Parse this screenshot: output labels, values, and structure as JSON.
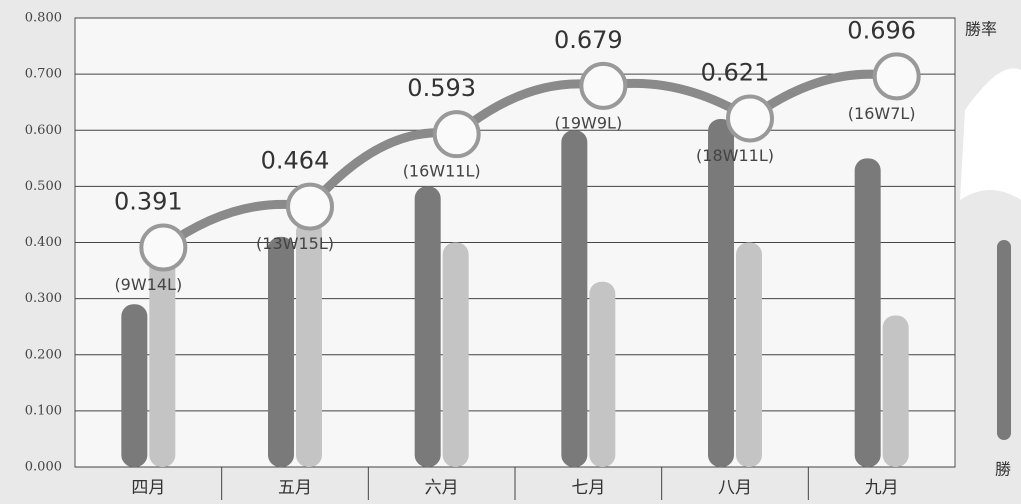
{
  "chart_data": {
    "type": "bar",
    "categories": [
      "四月",
      "五月",
      "六月",
      "七月",
      "八月",
      "九月"
    ],
    "series": [
      {
        "name": "勝",
        "color": "#7a7a7a",
        "values": [
          0.29,
          0.41,
          0.5,
          0.6,
          0.62,
          0.55
        ]
      },
      {
        "color": "#c4c4c4",
        "values": [
          0.4,
          0.44,
          0.4,
          0.33,
          0.4,
          0.27
        ]
      },
      {
        "name": "勝率",
        "type": "line",
        "color": "#8a8a8a",
        "values": [
          0.391,
          0.464,
          0.593,
          0.679,
          0.621,
          0.696
        ]
      }
    ],
    "records": [
      "(9W14L)",
      "(13W15L)",
      "(16W11L)",
      "(19W9L)",
      "(18W11L)",
      "(16W7L)"
    ],
    "ylim": [
      0,
      0.8
    ],
    "yticks": [
      {
        "value": 0,
        "label": "0.000"
      },
      {
        "value": 0.1,
        "label": "0.100"
      },
      {
        "value": 0.2,
        "label": "0.200"
      },
      {
        "value": 0.3,
        "label": "0.300"
      },
      {
        "value": 0.4,
        "label": "0.400"
      },
      {
        "value": 0.5,
        "label": "0.500"
      },
      {
        "value": 0.6,
        "label": "0.600"
      },
      {
        "value": 0.7,
        "label": "0.700"
      },
      {
        "value": 0.8,
        "label": "0.800"
      }
    ],
    "grid": true
  }
}
